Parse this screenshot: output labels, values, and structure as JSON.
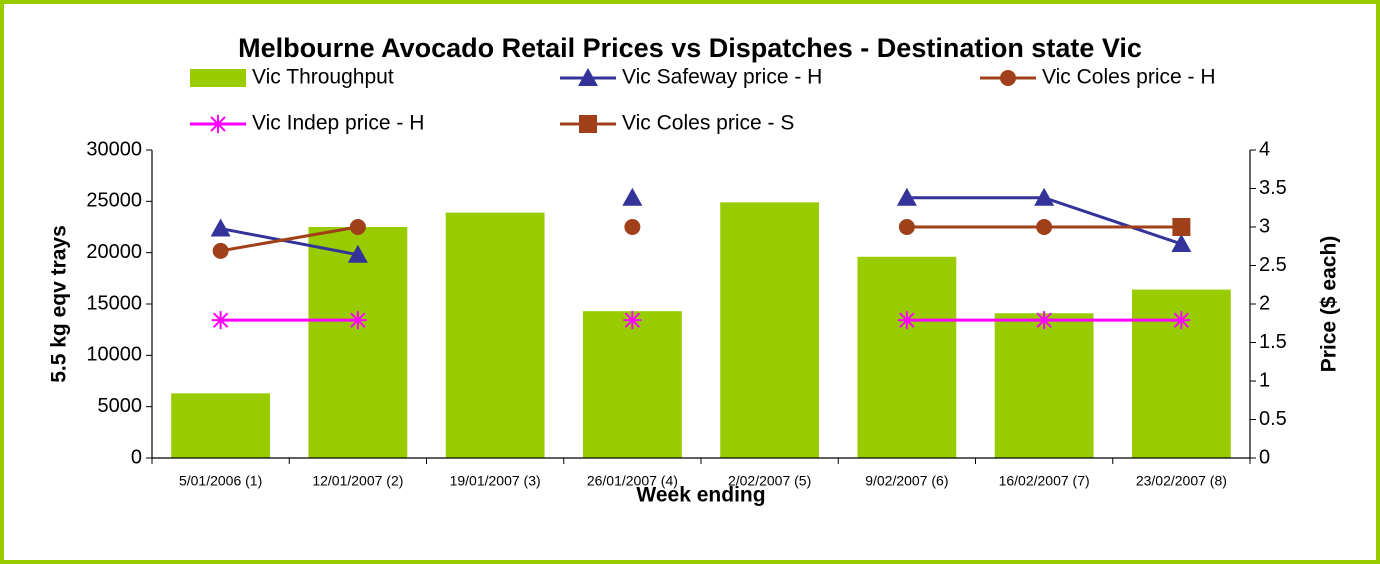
{
  "chart_data": {
    "type": "bar",
    "title": "Melbourne Avocado Retail Prices vs Dispatches - Destination state Vic",
    "x_label": "Week ending",
    "y_label": "5.5 kg eqv trays",
    "y2_label": "Price ($ each)",
    "categories": [
      "5/01/2006 (1)",
      "12/01/2007 (2)",
      "19/01/2007 (3)",
      "26/01/2007 (4)",
      "2/02/2007 (5)",
      "9/02/2007 (6)",
      "16/02/2007 (7)",
      "23/02/2007 (8)"
    ],
    "ylim": [
      0,
      30000
    ],
    "yticks": [
      0,
      5000,
      10000,
      15000,
      20000,
      25000,
      30000
    ],
    "y2lim": [
      0,
      4
    ],
    "y2ticks": [
      0,
      0.5,
      1,
      1.5,
      2,
      2.5,
      3,
      3.5,
      4
    ],
    "grid": false,
    "series": [
      {
        "name": "Vic Throughput",
        "type": "bar",
        "color": "#99cc00",
        "axis": "y",
        "values": [
          6300,
          22500,
          23900,
          14300,
          24900,
          19600,
          14100,
          16400
        ]
      },
      {
        "name": "Vic Safeway price - H",
        "type": "line",
        "marker": "triangle",
        "color": "#333399",
        "axis": "y2",
        "values": [
          2.98,
          2.64,
          null,
          3.38,
          null,
          3.38,
          3.38,
          2.78
        ]
      },
      {
        "name": "Vic Coles price - H",
        "type": "line",
        "marker": "circle",
        "color": "#a0401a",
        "axis": "y2",
        "values": [
          2.69,
          3.0,
          null,
          3.0,
          null,
          3.0,
          3.0,
          3.0
        ]
      },
      {
        "name": "Vic Indep price - H",
        "type": "line",
        "marker": "star",
        "color": "#ff00ff",
        "axis": "y2",
        "values": [
          1.79,
          1.79,
          null,
          1.79,
          null,
          1.79,
          1.79,
          1.79
        ]
      },
      {
        "name": "Vic Coles price - S",
        "type": "line",
        "marker": "square",
        "color": "#a0401a",
        "axis": "y2",
        "values": [
          null,
          null,
          null,
          null,
          null,
          null,
          null,
          3.0
        ]
      }
    ]
  }
}
